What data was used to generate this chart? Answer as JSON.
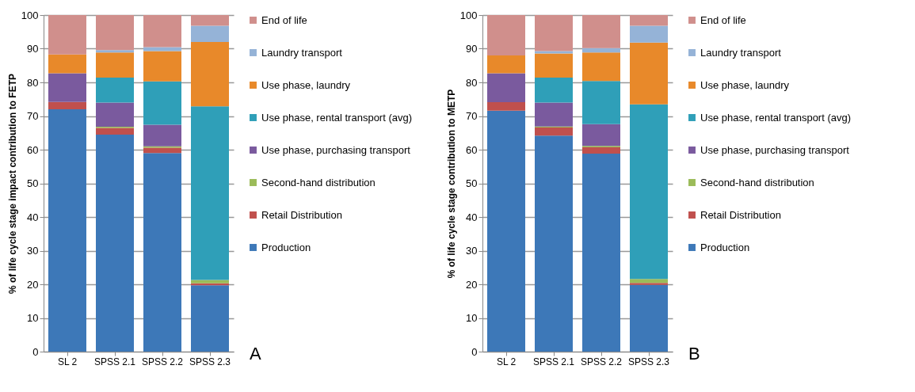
{
  "chart_data": [
    {
      "type": "bar",
      "stacked": true,
      "ylabel": "% of life cycle stage impact contribution to FETP",
      "categories": [
        "SL 2",
        "SPSS 2.1",
        "SPSS 2.2",
        "SPSS 2.3"
      ],
      "ylim": [
        0,
        100
      ],
      "yticks": [
        0,
        10,
        20,
        30,
        40,
        50,
        60,
        70,
        80,
        90,
        100
      ],
      "grid": "y",
      "legend": "right",
      "annotations": [
        "A"
      ],
      "series": [
        {
          "name": "Production",
          "color": "#3d78b8",
          "values": [
            72,
            64.5,
            59,
            19.7
          ]
        },
        {
          "name": "Retail Distribution",
          "color": "#c0504d",
          "values": [
            2.2,
            2,
            1.6,
            0.6
          ]
        },
        {
          "name": "Second-hand distribution",
          "color": "#9bbb59",
          "values": [
            null,
            0.3,
            0.4,
            1
          ]
        },
        {
          "name": "Use phase, purchasing transport",
          "color": "#7a5a9e",
          "values": [
            8.5,
            7.2,
            6.4,
            null
          ]
        },
        {
          "name": "Use phase, rental transport (avg)",
          "color": "#2f9fb8",
          "values": [
            null,
            7.4,
            12.9,
            51.6
          ]
        },
        {
          "name": "Use phase, laundry",
          "color": "#e8892a",
          "values": [
            5.6,
            7.5,
            9,
            19.1
          ]
        },
        {
          "name": "Laundry transport",
          "color": "#95b3d7",
          "values": [
            null,
            0.7,
            1.2,
            4.8
          ]
        },
        {
          "name": "End of life",
          "color": "#d08f8c",
          "values": [
            11.7,
            10.4,
            9.5,
            3.2
          ]
        }
      ]
    },
    {
      "type": "bar",
      "stacked": true,
      "ylabel": "% of life cycle stage contribution to METP",
      "categories": [
        "SL 2",
        "SPSS 2.1",
        "SPSS 2.2",
        "SPSS 2.3"
      ],
      "ylim": [
        0,
        100
      ],
      "yticks": [
        0,
        10,
        20,
        30,
        40,
        50,
        60,
        70,
        80,
        90,
        100
      ],
      "grid": "y",
      "legend": "right",
      "annotations": [
        "B"
      ],
      "series": [
        {
          "name": "Production",
          "color": "#3d78b8",
          "values": [
            71.6,
            64.2,
            58.8,
            19.8
          ]
        },
        {
          "name": "Retail Distribution",
          "color": "#c0504d",
          "values": [
            2.5,
            2.4,
            1.9,
            0.6
          ]
        },
        {
          "name": "Second-hand distribution",
          "color": "#9bbb59",
          "values": [
            null,
            0.3,
            0.4,
            1.2
          ]
        },
        {
          "name": "Use phase, purchasing transport",
          "color": "#7a5a9e",
          "values": [
            8.6,
            7.1,
            6.5,
            null
          ]
        },
        {
          "name": "Use phase, rental transport (avg)",
          "color": "#2f9fb8",
          "values": [
            null,
            7.4,
            12.8,
            51.9
          ]
        },
        {
          "name": "Use phase, laundry",
          "color": "#e8892a",
          "values": [
            5.3,
            7.2,
            8.5,
            18.3
          ]
        },
        {
          "name": "Laundry transport",
          "color": "#95b3d7",
          "values": [
            null,
            0.7,
            1.3,
            5
          ]
        },
        {
          "name": "End of life",
          "color": "#d08f8c",
          "values": [
            12,
            10.7,
            9.8,
            3.2
          ]
        }
      ]
    }
  ]
}
